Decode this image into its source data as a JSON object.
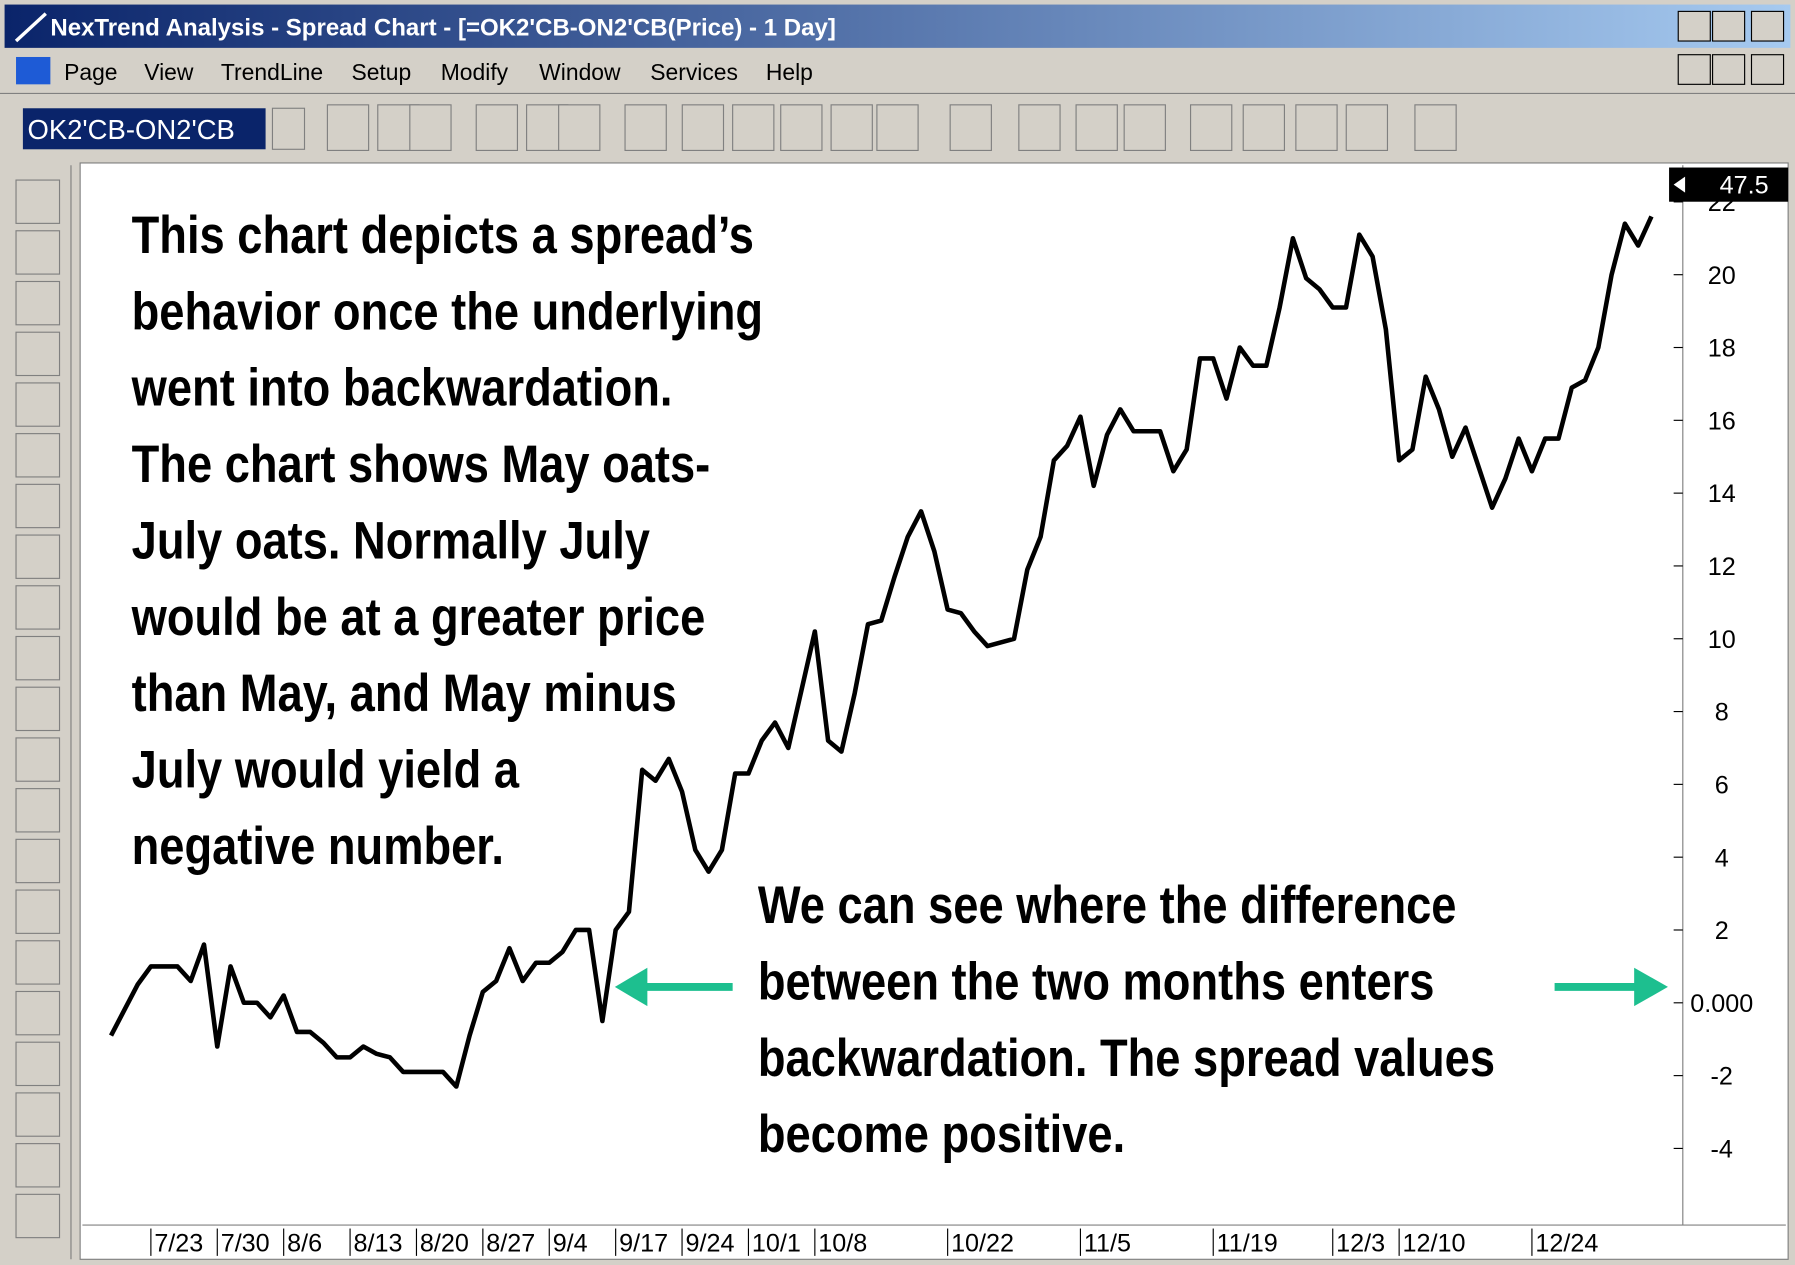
{
  "window": {
    "title": "NexTrend Analysis - Spread Chart - [=OK2'CB-ON2'CB(Price) -  1 Day]",
    "menu": [
      "Page",
      "View",
      "TrendLine",
      "Setup",
      "Modify",
      "Window",
      "Services",
      "Help"
    ],
    "symbol": "OK2'CB-ON2'CB",
    "price_marker": 47.5
  },
  "chart_data": {
    "type": "line",
    "annotations": [
      {
        "lines": [
          "This chart depicts a spread’s",
          "behavior once the underlying",
          "went into backwardation.",
          "The chart shows May oats-",
          "July oats.  Normally July",
          "would be at a greater price",
          "than May, and May minus",
          "July would yield a",
          "negative number."
        ]
      },
      {
        "lines": [
          "We can see where the difference",
          "between the two months enters",
          "backwardation.  The spread values",
          "become positive."
        ]
      }
    ],
    "categories": [
      null,
      null,
      null,
      "7/23",
      null,
      null,
      null,
      null,
      "7/30",
      null,
      null,
      null,
      null,
      "8/6",
      null,
      null,
      null,
      null,
      "8/13",
      null,
      null,
      null,
      null,
      "8/20",
      null,
      null,
      null,
      null,
      "8/27",
      null,
      null,
      null,
      null,
      "9/4",
      null,
      null,
      null,
      null,
      "9/17",
      null,
      null,
      null,
      null,
      "9/24",
      null,
      null,
      null,
      null,
      "10/1",
      null,
      null,
      null,
      null,
      "10/8",
      null,
      null,
      null,
      null,
      null,
      null,
      null,
      null,
      null,
      "10/22",
      null,
      null,
      null,
      null,
      null,
      null,
      null,
      null,
      null,
      "11/5",
      null,
      null,
      null,
      null,
      null,
      null,
      null,
      null,
      null,
      "11/19",
      null,
      null,
      null,
      null,
      null,
      null,
      null,
      null,
      "12/3",
      null,
      null,
      null,
      null,
      "12/10",
      null,
      null,
      null,
      null,
      null,
      null,
      null,
      null,
      null,
      "12/24",
      null,
      null,
      null,
      null,
      null,
      null,
      null,
      null,
      null
    ],
    "series": [
      {
        "color": "#000000",
        "values": [
          -0.9,
          -0.2,
          0.5,
          1.0,
          1.0,
          1.0,
          0.6,
          1.6,
          -1.2,
          1.0,
          0,
          0,
          -0.4,
          0.2,
          -0.8,
          -0.8,
          -1.1,
          -1.5,
          -1.5,
          -1.2,
          -1.4,
          -1.5,
          -1.9,
          -1.9,
          -1.9,
          -1.9,
          -2.3,
          -0.9,
          0.3,
          0.6,
          1.5,
          0.6,
          1.1,
          1.1,
          1.4,
          2.0,
          2.0,
          -0.5,
          2.0,
          2.5,
          6.4,
          6.1,
          6.7,
          5.8,
          4.2,
          3.6,
          4.2,
          6.3,
          6.3,
          7.2,
          7.7,
          7.0,
          8.6,
          10.2,
          7.2,
          6.9,
          8.5,
          10.4,
          10.5,
          11.7,
          12.8,
          13.5,
          12.4,
          10.8,
          10.7,
          10.2,
          9.8,
          9.9,
          10.0,
          11.9,
          12.8,
          14.9,
          15.3,
          16.1,
          14.2,
          15.6,
          16.3,
          15.7,
          15.7,
          15.7,
          14.6,
          15.2,
          17.7,
          17.7,
          16.6,
          18.0,
          17.5,
          17.5,
          19.1,
          21.0,
          19.9,
          19.6,
          19.1,
          19.1,
          21.1,
          20.5,
          18.5,
          14.9,
          15.2,
          17.2,
          16.3,
          15.0,
          15.8,
          14.7,
          13.6,
          14.4,
          15.5,
          14.6,
          15.5,
          15.5,
          16.9,
          17.1,
          18.0,
          20.0,
          21.4,
          20.8,
          21.6
        ]
      }
    ],
    "ylim": [
      -5.95,
      22.85
    ],
    "yticks": [
      -4,
      -2,
      {
        "value": 0,
        "label": "0.000"
      },
      2,
      4,
      6,
      8,
      10,
      12,
      14,
      16,
      18,
      20,
      22
    ]
  }
}
